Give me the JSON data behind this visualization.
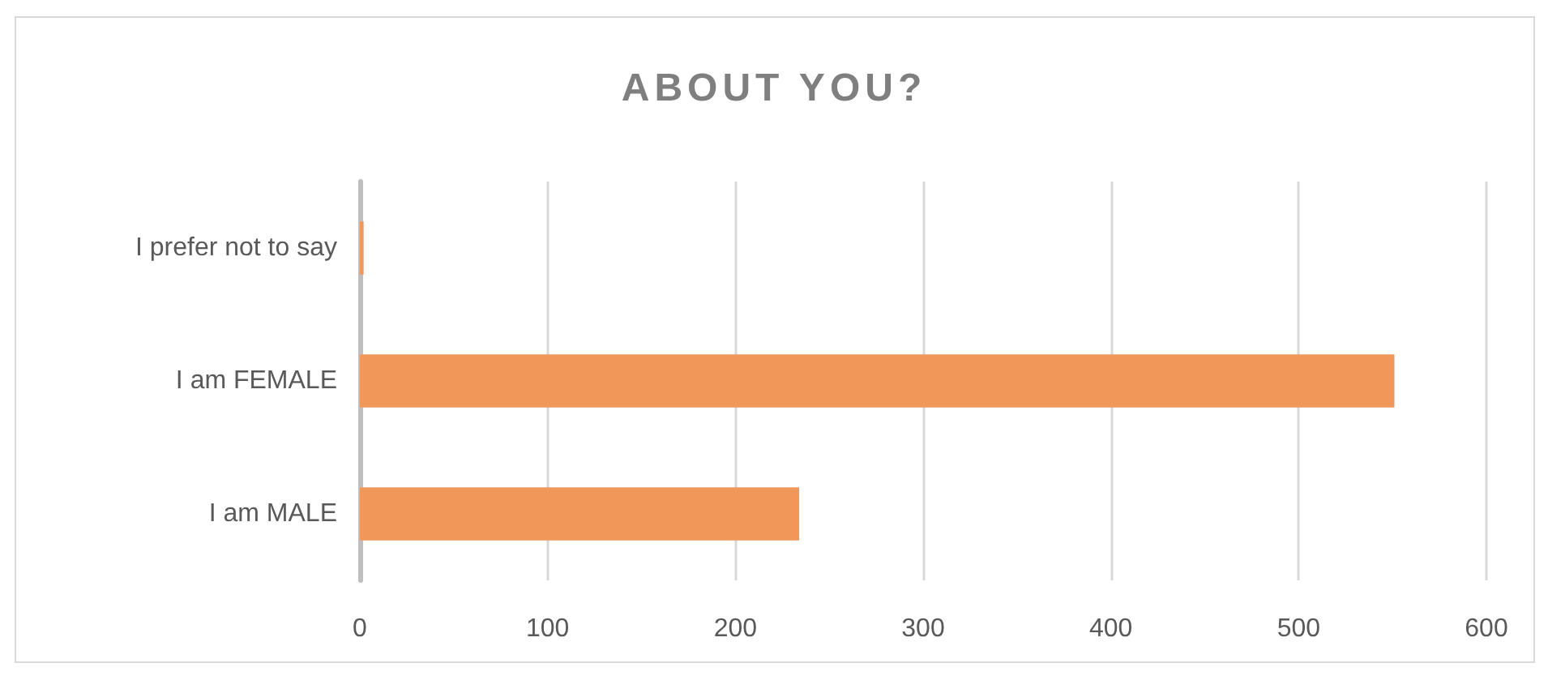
{
  "chart_data": {
    "type": "bar",
    "title": "ABOUT YOU?",
    "categories": [
      "I prefer not to say",
      "I am FEMALE",
      "I am MALE"
    ],
    "values": [
      2,
      551,
      234
    ],
    "color": "#f0975a",
    "orientation": "horizontal",
    "xlim": [
      0,
      600
    ],
    "xticks": [
      0,
      100,
      200,
      300,
      400,
      500,
      600
    ],
    "grid": "x"
  }
}
